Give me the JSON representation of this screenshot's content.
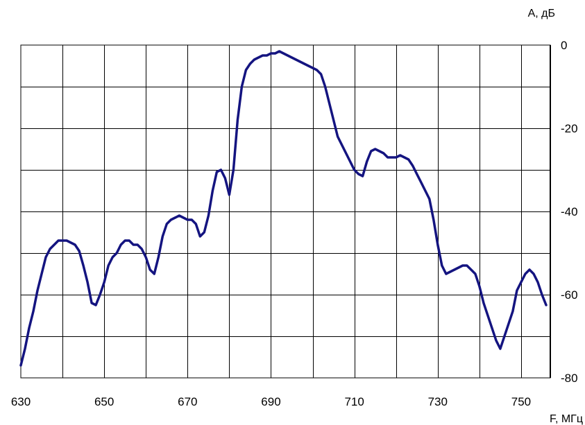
{
  "chart_data": {
    "type": "line",
    "xlabel": "F, МГц",
    "ylabel": "А, дБ",
    "xlim": [
      630,
      757
    ],
    "ylim": [
      -80,
      0
    ],
    "x_ticks": [
      630,
      650,
      670,
      690,
      710,
      730,
      750
    ],
    "x_tick_labels": [
      "630",
      "650",
      "670",
      "690",
      "710",
      "730",
      "750"
    ],
    "y_ticks": [
      0,
      -20,
      -40,
      -60,
      -80
    ],
    "y_tick_labels": [
      "0",
      "-20",
      "-40",
      "-60",
      "-80"
    ],
    "grid": true,
    "series": [
      {
        "color": "#141480",
        "points": [
          [
            630,
            -77
          ],
          [
            631,
            -73
          ],
          [
            632,
            -68
          ],
          [
            633,
            -64
          ],
          [
            634,
            -59
          ],
          [
            635,
            -55
          ],
          [
            636,
            -51
          ],
          [
            637,
            -49
          ],
          [
            638,
            -48
          ],
          [
            639,
            -47
          ],
          [
            640,
            -47
          ],
          [
            641,
            -47
          ],
          [
            642,
            -47.5
          ],
          [
            643,
            -48
          ],
          [
            644,
            -49.5
          ],
          [
            645,
            -53
          ],
          [
            646,
            -57
          ],
          [
            647,
            -62
          ],
          [
            648,
            -62.5
          ],
          [
            649,
            -60
          ],
          [
            650,
            -57
          ],
          [
            651,
            -53
          ],
          [
            652,
            -51
          ],
          [
            653,
            -50
          ],
          [
            654,
            -48
          ],
          [
            655,
            -47
          ],
          [
            656,
            -47
          ],
          [
            657,
            -48
          ],
          [
            658,
            -48
          ],
          [
            659,
            -49
          ],
          [
            660,
            -51
          ],
          [
            661,
            -54
          ],
          [
            662,
            -55
          ],
          [
            663,
            -51
          ],
          [
            664,
            -46
          ],
          [
            665,
            -43
          ],
          [
            666,
            -42
          ],
          [
            667,
            -41.5
          ],
          [
            668,
            -41
          ],
          [
            669,
            -41.5
          ],
          [
            670,
            -42
          ],
          [
            671,
            -42
          ],
          [
            672,
            -43
          ],
          [
            673,
            -46
          ],
          [
            674,
            -45
          ],
          [
            675,
            -41
          ],
          [
            676,
            -35
          ],
          [
            677,
            -30.5
          ],
          [
            678,
            -30
          ],
          [
            679,
            -32
          ],
          [
            680,
            -36
          ],
          [
            681,
            -30
          ],
          [
            682,
            -18
          ],
          [
            683,
            -10
          ],
          [
            684,
            -6
          ],
          [
            685,
            -4.5
          ],
          [
            686,
            -3.5
          ],
          [
            687,
            -3
          ],
          [
            688,
            -2.5
          ],
          [
            689,
            -2.5
          ],
          [
            690,
            -2
          ],
          [
            691,
            -2
          ],
          [
            692,
            -1.5
          ],
          [
            693,
            -2
          ],
          [
            694,
            -2.5
          ],
          [
            695,
            -3
          ],
          [
            696,
            -3.5
          ],
          [
            697,
            -4
          ],
          [
            698,
            -4.5
          ],
          [
            699,
            -5
          ],
          [
            700,
            -5.5
          ],
          [
            701,
            -6
          ],
          [
            702,
            -7
          ],
          [
            703,
            -10
          ],
          [
            704,
            -14
          ],
          [
            705,
            -18
          ],
          [
            706,
            -22
          ],
          [
            707,
            -24
          ],
          [
            708,
            -26
          ],
          [
            709,
            -28
          ],
          [
            710,
            -30
          ],
          [
            711,
            -31
          ],
          [
            712,
            -31.5
          ],
          [
            713,
            -28
          ],
          [
            714,
            -25.5
          ],
          [
            715,
            -25
          ],
          [
            716,
            -25.5
          ],
          [
            717,
            -26
          ],
          [
            718,
            -27
          ],
          [
            719,
            -27
          ],
          [
            720,
            -27
          ],
          [
            721,
            -26.5
          ],
          [
            722,
            -27
          ],
          [
            723,
            -27.5
          ],
          [
            724,
            -29
          ],
          [
            725,
            -31
          ],
          [
            726,
            -33
          ],
          [
            727,
            -35
          ],
          [
            728,
            -37
          ],
          [
            729,
            -42
          ],
          [
            730,
            -48
          ],
          [
            731,
            -53
          ],
          [
            732,
            -55
          ],
          [
            733,
            -54.5
          ],
          [
            734,
            -54
          ],
          [
            735,
            -53.5
          ],
          [
            736,
            -53
          ],
          [
            737,
            -53
          ],
          [
            738,
            -54
          ],
          [
            739,
            -55
          ],
          [
            740,
            -58
          ],
          [
            741,
            -62
          ],
          [
            742,
            -65
          ],
          [
            743,
            -68
          ],
          [
            744,
            -71
          ],
          [
            745,
            -73
          ],
          [
            746,
            -70
          ],
          [
            747,
            -67
          ],
          [
            748,
            -64
          ],
          [
            749,
            -59
          ],
          [
            750,
            -57
          ],
          [
            751,
            -55
          ],
          [
            752,
            -54
          ],
          [
            753,
            -55
          ],
          [
            754,
            -57
          ],
          [
            755,
            -60
          ],
          [
            756,
            -62.5
          ]
        ]
      }
    ]
  }
}
